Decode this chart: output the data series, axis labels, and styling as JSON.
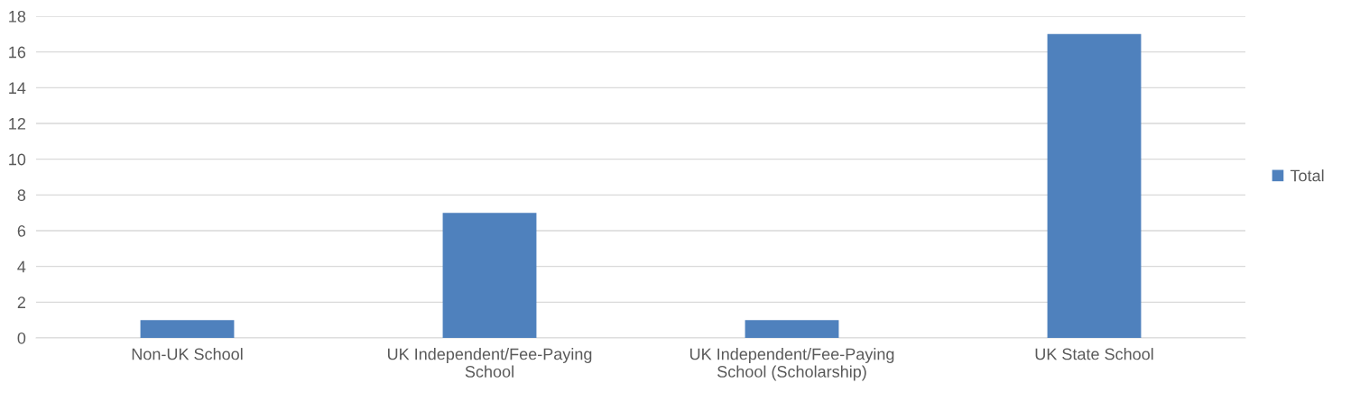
{
  "chart_data": {
    "type": "bar",
    "categories": [
      "Non-UK School",
      "UK Independent/Fee-Paying\nSchool",
      "UK Independent/Fee-Paying\nSchool (Scholarship)",
      "UK State School"
    ],
    "series": [
      {
        "name": "Total",
        "color": "#4f81bd",
        "values": [
          1,
          7,
          1,
          17
        ]
      }
    ],
    "ylim": [
      0,
      18
    ],
    "yticks": [
      0,
      2,
      4,
      6,
      8,
      10,
      12,
      14,
      16,
      18
    ],
    "grid": "y",
    "legend": "right"
  }
}
